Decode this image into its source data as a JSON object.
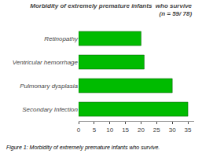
{
  "chart_data": {
    "type": "bar",
    "orientation": "horizontal",
    "title": "Morbidity of extremely premature infants  who survive",
    "subtitle": "(n = 59/ 78)",
    "annotations": [
      "Figure 1: Morbidity of extremely premature infants who survive."
    ],
    "categories": [
      "Secondary Infection",
      "Pulmonary dysplasia",
      "Ventricular hemorrhage",
      "Retinopathy"
    ],
    "values": [
      35,
      30,
      21,
      20
    ],
    "color": "#00bb00",
    "xlim": [
      0,
      37
    ],
    "xticks": [
      0,
      5,
      10,
      15,
      20,
      25,
      30,
      35
    ],
    "grid": false
  }
}
